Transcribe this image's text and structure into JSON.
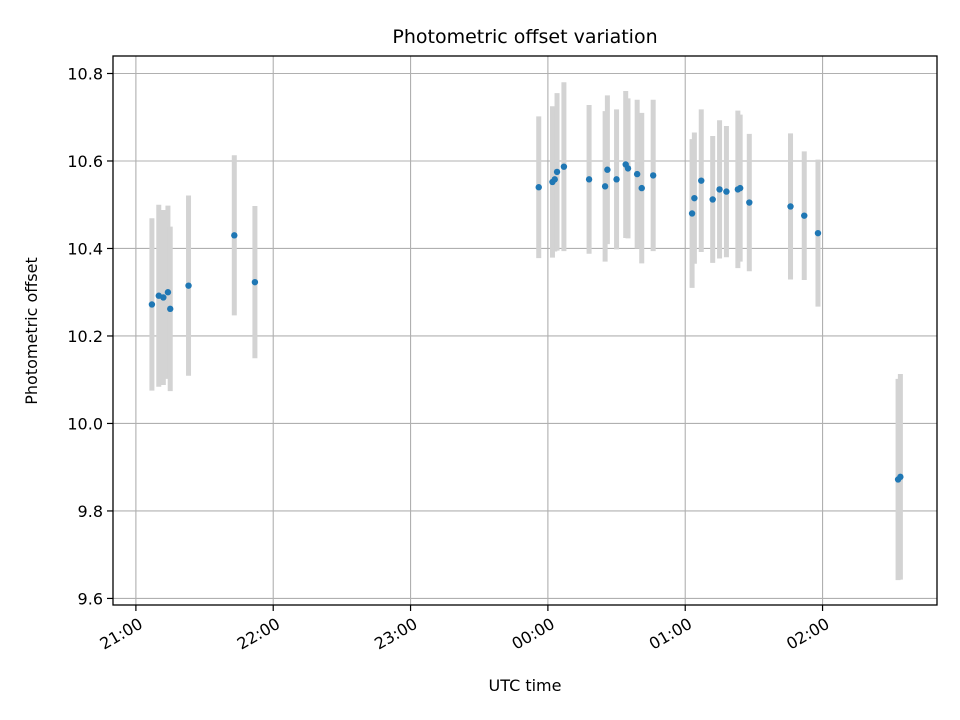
{
  "chart_data": {
    "type": "scatter",
    "title": "Photometric offset variation",
    "xlabel": "UTC time",
    "ylabel": "Photometric offset",
    "x_unit": "UTC time, hours from 21:00 (axis spans 20:50–02:50, wrapping past midnight)",
    "xlim": [
      "20:50",
      "02:50"
    ],
    "ylim": [
      9.585,
      10.84
    ],
    "x_ticks": [
      "21:00",
      "22:00",
      "23:00",
      "00:00",
      "01:00",
      "02:00"
    ],
    "y_ticks": [
      9.6,
      9.8,
      10.0,
      10.2,
      10.4,
      10.6,
      10.8
    ],
    "grid": true,
    "legend": "none",
    "colors": {
      "point": "#1f77b4",
      "errorbar": "#d3d3d3",
      "grid": "#b0b0b0"
    },
    "points": [
      {
        "x": "21:07",
        "y": 10.272,
        "err": 0.197
      },
      {
        "x": "21:10",
        "y": 10.292,
        "err": 0.208
      },
      {
        "x": "21:12",
        "y": 10.288,
        "err": 0.2
      },
      {
        "x": "21:14",
        "y": 10.3,
        "err": 0.198
      },
      {
        "x": "21:15",
        "y": 10.262,
        "err": 0.188
      },
      {
        "x": "21:23",
        "y": 10.315,
        "err": 0.206
      },
      {
        "x": "21:43",
        "y": 10.43,
        "err": 0.183
      },
      {
        "x": "21:52",
        "y": 10.323,
        "err": 0.174
      },
      {
        "x": "23:56",
        "y": 10.54,
        "err": 0.162
      },
      {
        "x": "00:02",
        "y": 10.552,
        "err": 0.173
      },
      {
        "x": "00:03",
        "y": 10.558,
        "err": 0.165
      },
      {
        "x": "00:04",
        "y": 10.575,
        "err": 0.18
      },
      {
        "x": "00:07",
        "y": 10.587,
        "err": 0.193
      },
      {
        "x": "00:18",
        "y": 10.558,
        "err": 0.17
      },
      {
        "x": "00:25",
        "y": 10.542,
        "err": 0.172
      },
      {
        "x": "00:26",
        "y": 10.58,
        "err": 0.17
      },
      {
        "x": "00:30",
        "y": 10.558,
        "err": 0.16
      },
      {
        "x": "00:34",
        "y": 10.592,
        "err": 0.168
      },
      {
        "x": "00:35",
        "y": 10.583,
        "err": 0.16
      },
      {
        "x": "00:39",
        "y": 10.57,
        "err": 0.17
      },
      {
        "x": "00:41",
        "y": 10.538,
        "err": 0.172
      },
      {
        "x": "00:46",
        "y": 10.567,
        "err": 0.173
      },
      {
        "x": "01:03",
        "y": 10.48,
        "err": 0.17
      },
      {
        "x": "01:04",
        "y": 10.515,
        "err": 0.15
      },
      {
        "x": "01:07",
        "y": 10.555,
        "err": 0.163
      },
      {
        "x": "01:12",
        "y": 10.512,
        "err": 0.145
      },
      {
        "x": "01:15",
        "y": 10.535,
        "err": 0.158
      },
      {
        "x": "01:18",
        "y": 10.53,
        "err": 0.15
      },
      {
        "x": "01:23",
        "y": 10.535,
        "err": 0.18
      },
      {
        "x": "01:24",
        "y": 10.538,
        "err": 0.168
      },
      {
        "x": "01:28",
        "y": 10.505,
        "err": 0.157
      },
      {
        "x": "01:46",
        "y": 10.496,
        "err": 0.167
      },
      {
        "x": "01:52",
        "y": 10.475,
        "err": 0.147
      },
      {
        "x": "01:58",
        "y": 10.435,
        "err": 0.168
      },
      {
        "x": "02:33",
        "y": 9.872,
        "err": 0.23
      },
      {
        "x": "02:34",
        "y": 9.878,
        "err": 0.235
      }
    ]
  }
}
